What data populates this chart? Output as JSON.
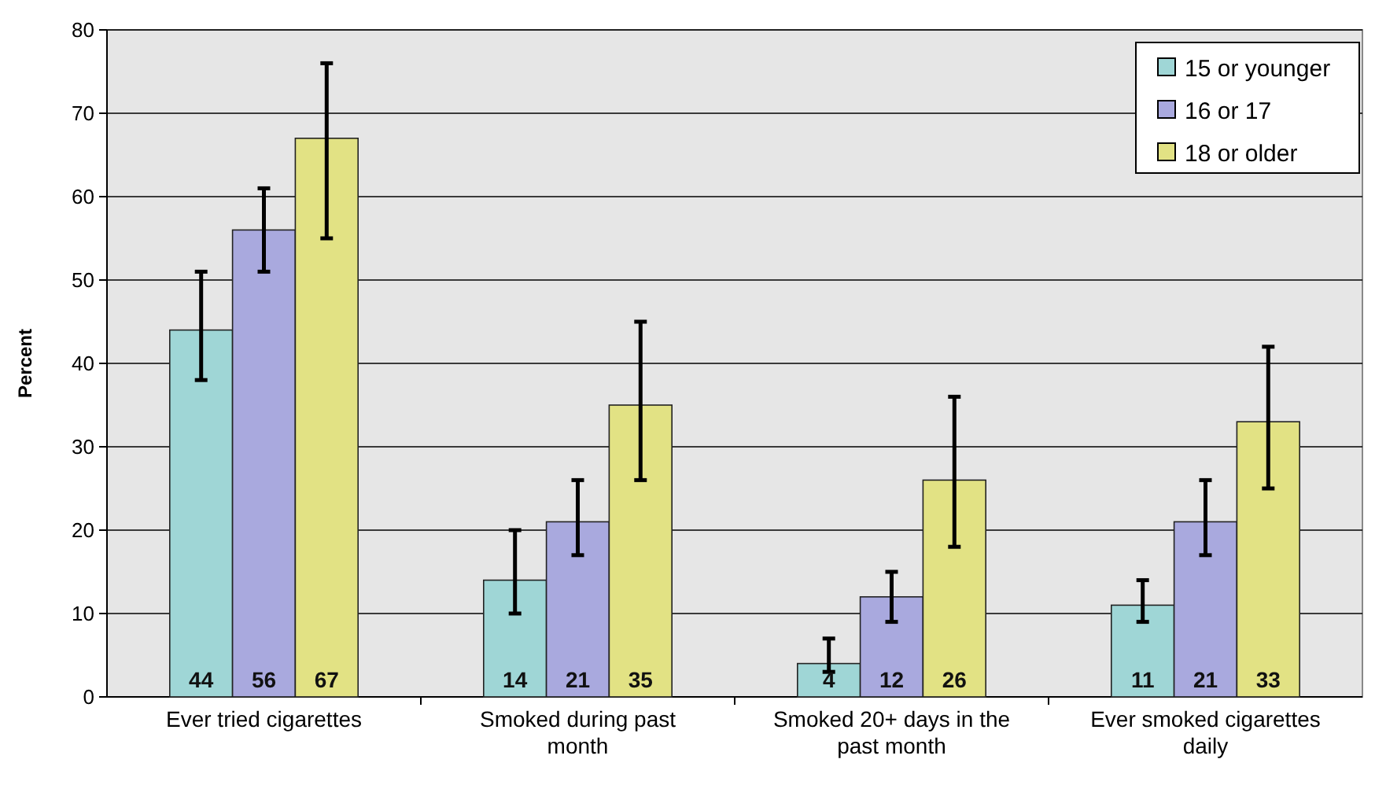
{
  "chart_data": {
    "type": "bar",
    "ylabel": "Percent",
    "categories": [
      "Ever tried cigarettes",
      "Smoked during past month",
      "Smoked 20+ days in the past month",
      "Ever smoked cigarettes daily"
    ],
    "series": [
      {
        "name": "15 or younger",
        "color": "#9fd6d6",
        "values": [
          44,
          14,
          4,
          11
        ],
        "errors": [
          [
            38,
            51
          ],
          [
            10,
            20
          ],
          [
            3,
            7
          ],
          [
            9,
            14
          ]
        ]
      },
      {
        "name": "16 or 17",
        "color": "#a9a9de",
        "values": [
          56,
          21,
          12,
          21
        ],
        "errors": [
          [
            51,
            61
          ],
          [
            17,
            26
          ],
          [
            9,
            15
          ],
          [
            17,
            26
          ]
        ]
      },
      {
        "name": "18 or older",
        "color": "#e2e284",
        "values": [
          67,
          35,
          26,
          33
        ],
        "errors": [
          [
            55,
            76
          ],
          [
            26,
            45
          ],
          [
            18,
            36
          ],
          [
            25,
            42
          ]
        ]
      }
    ],
    "ylim": [
      0,
      80
    ],
    "yticks": [
      0,
      10,
      20,
      30,
      40,
      50,
      60,
      70,
      80
    ],
    "grid": "y",
    "legend": "top right",
    "data_labels": true
  }
}
